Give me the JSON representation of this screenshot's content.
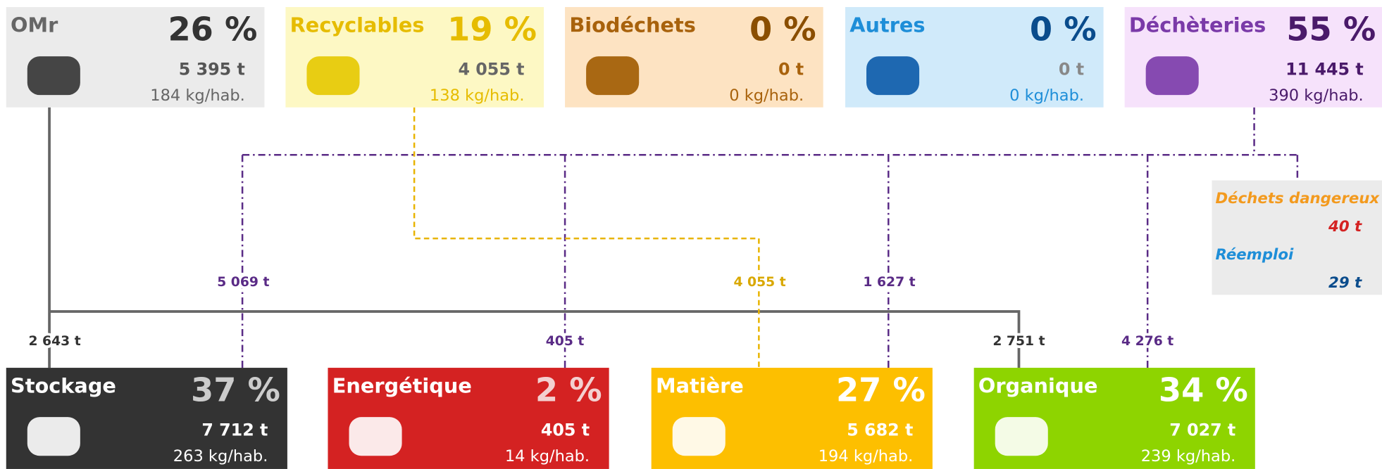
{
  "sources": [
    {
      "name": "OMr",
      "share": "26 %",
      "tonnage": "5 395 t",
      "ratio": "184 kg/hab."
    },
    {
      "name": "Recyclables",
      "share": "19 %",
      "tonnage": "4 055 t",
      "ratio": "138 kg/hab."
    },
    {
      "name": "Biodéchets",
      "share": "0 %",
      "tonnage": "0 t",
      "ratio": "0 kg/hab."
    },
    {
      "name": "Autres",
      "share": "0 %",
      "tonnage": "0 t",
      "ratio": "0 kg/hab."
    },
    {
      "name": "Déchèteries",
      "share": "55 %",
      "tonnage": "11 445 t",
      "ratio": "390 kg/hab."
    }
  ],
  "destinations": [
    {
      "name": "Stockage",
      "share": "37 %",
      "tonnage": "7 712 t",
      "ratio": "263 kg/hab."
    },
    {
      "name": "Energétique",
      "share": "2 %",
      "tonnage": "405 t",
      "ratio": "14 kg/hab."
    },
    {
      "name": "Matière",
      "share": "27 %",
      "tonnage": "5 682 t",
      "ratio": "194 kg/hab."
    },
    {
      "name": "Organique",
      "share": "34 %",
      "tonnage": "7 027 t",
      "ratio": "239 kg/hab."
    }
  ],
  "flows": [
    "5 069 t",
    "4 055 t",
    "1 627 t",
    "2 643 t",
    "405 t",
    "2 751 t",
    "4 276 t"
  ],
  "side": {
    "hazardous_label": "Déchets dangereux",
    "hazardous_value": "40 t",
    "reuse_label": "Réemploi",
    "reuse_value": "29 t"
  }
}
